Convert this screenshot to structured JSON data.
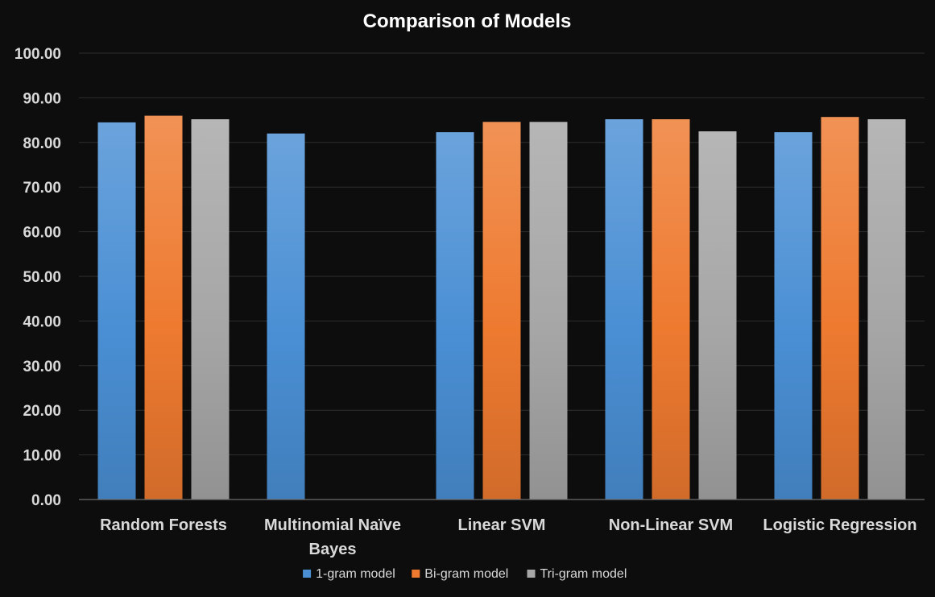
{
  "chart_data": {
    "type": "bar",
    "title": "Comparison of Models",
    "xlabel": "",
    "ylabel": "",
    "ylim": [
      0,
      100
    ],
    "yticks": [
      "0.00",
      "10.00",
      "20.00",
      "30.00",
      "40.00",
      "50.00",
      "60.00",
      "70.00",
      "80.00",
      "90.00",
      "100.00"
    ],
    "categories": [
      [
        "Random Forests"
      ],
      [
        "Multinomial Naïve",
        "Bayes"
      ],
      [
        "Linear SVM"
      ],
      [
        "Non-Linear SVM"
      ],
      [
        "Logistic Regression"
      ]
    ],
    "series": [
      {
        "name": "1-gram model",
        "color": "#4a8fd4",
        "values": [
          84.5,
          82.0,
          82.3,
          85.2,
          82.3
        ]
      },
      {
        "name": "Bi-gram model",
        "color": "#ee7a30",
        "values": [
          86.0,
          null,
          84.6,
          85.2,
          85.7
        ]
      },
      {
        "name": "Tri-gram model",
        "color": "#a6a6a6",
        "values": [
          85.2,
          null,
          84.6,
          82.5,
          85.2
        ]
      }
    ],
    "grid": true,
    "legend_position": "bottom"
  }
}
